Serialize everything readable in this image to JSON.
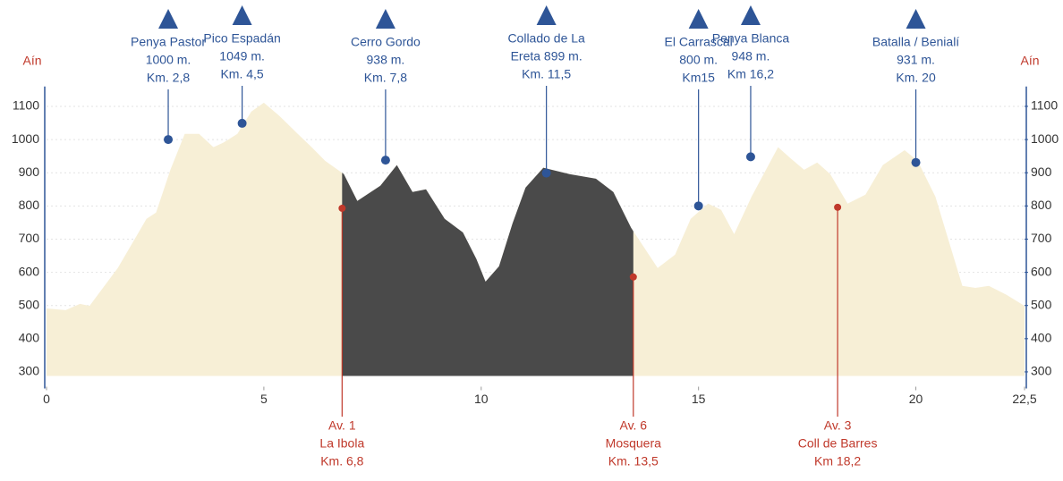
{
  "chart_data": {
    "type": "area",
    "y_label": "Aín",
    "y2_label": "Aín",
    "x": [
      0,
      0.44,
      0.77,
      0.99,
      1.64,
      2.3,
      2.52,
      2.85,
      3.18,
      3.51,
      3.84,
      4.06,
      4.39,
      4.71,
      5.0,
      5.36,
      5.78,
      6.1,
      6.41,
      6.84,
      7.15,
      7.68,
      8.06,
      8.42,
      8.73,
      9.16,
      9.58,
      9.89,
      10.1,
      10.41,
      10.72,
      11.02,
      11.43,
      12.03,
      12.64,
      13.04,
      13.45,
      14.06,
      14.46,
      14.82,
      15.22,
      15.52,
      15.82,
      16.22,
      16.83,
      17.13,
      17.43,
      17.73,
      18.03,
      18.43,
      18.84,
      19.24,
      19.74,
      20.04,
      20.45,
      20.76,
      21.07,
      21.37,
      21.68,
      22.09,
      22.5
    ],
    "values": [
      491,
      486,
      505,
      499,
      613,
      761,
      780,
      909,
      1017,
      1017,
      977,
      990,
      1017,
      1084,
      1111,
      1071,
      1017,
      977,
      936,
      896,
      815,
      861,
      923,
      842,
      850,
      761,
      720,
      640,
      572,
      618,
      747,
      855,
      915,
      896,
      882,
      842,
      734,
      613,
      653,
      761,
      807,
      788,
      715,
      828,
      977,
      942,
      909,
      931,
      896,
      807,
      834,
      923,
      968,
      936,
      828,
      693,
      559,
      553,
      559,
      532,
      499
    ],
    "color": "#f7efd6",
    "highlight_color": "#4a4a4a",
    "xlim": [
      0,
      22.5
    ],
    "xticks": [
      0,
      5,
      10,
      15,
      20,
      {
        "value": 22.5,
        "label": "22,5"
      }
    ],
    "ylim": [
      250,
      1160
    ],
    "yticks": [
      300,
      400,
      500,
      600,
      700,
      800,
      900,
      1000,
      1100
    ],
    "y2lim": [
      250,
      1160
    ],
    "y2ticks": [
      300,
      400,
      500,
      600,
      700,
      800,
      900,
      1000,
      1100
    ],
    "grid": true,
    "peaks": [
      {
        "lines": [
          "Penya Pastor",
          "1000 m.",
          "Km. 2,8"
        ],
        "km": 2.8,
        "elevation": 1000
      },
      {
        "lines": [
          "Pico Espadán",
          "1049 m.",
          "Km. 4,5"
        ],
        "km": 4.5,
        "elevation": 1049
      },
      {
        "lines": [
          "Cerro Gordo",
          "938 m.",
          "Km. 7,8"
        ],
        "km": 7.8,
        "elevation": 938
      },
      {
        "lines": [
          "Collado de La",
          "Ereta 899 m.",
          "Km. 11,5"
        ],
        "km": 11.5,
        "elevation": 899
      },
      {
        "lines": [
          "El Carrascal",
          "800 m.",
          "Km15"
        ],
        "km": 15,
        "elevation": 800
      },
      {
        "lines": [
          "Penya Blanca",
          "948 m.",
          "Km 16,2"
        ],
        "km": 16.2,
        "elevation": 948
      },
      {
        "lines": [
          "Batalla / Benialí",
          "931 m.",
          "Km. 20"
        ],
        "km": 20,
        "elevation": 931
      }
    ],
    "aid_stations": [
      {
        "lines": [
          "Av. 1",
          "La Ibola",
          "Km. 6,8"
        ],
        "km": 6.8,
        "elevation": 793
      },
      {
        "lines": [
          "Av. 6",
          "Mosquera",
          "Km. 13,5"
        ],
        "km": 13.5,
        "elevation": 586
      },
      {
        "lines": [
          "Av. 3",
          "Coll de Barres",
          "Km 18,2"
        ],
        "km": 18.2,
        "elevation": 796
      }
    ]
  }
}
